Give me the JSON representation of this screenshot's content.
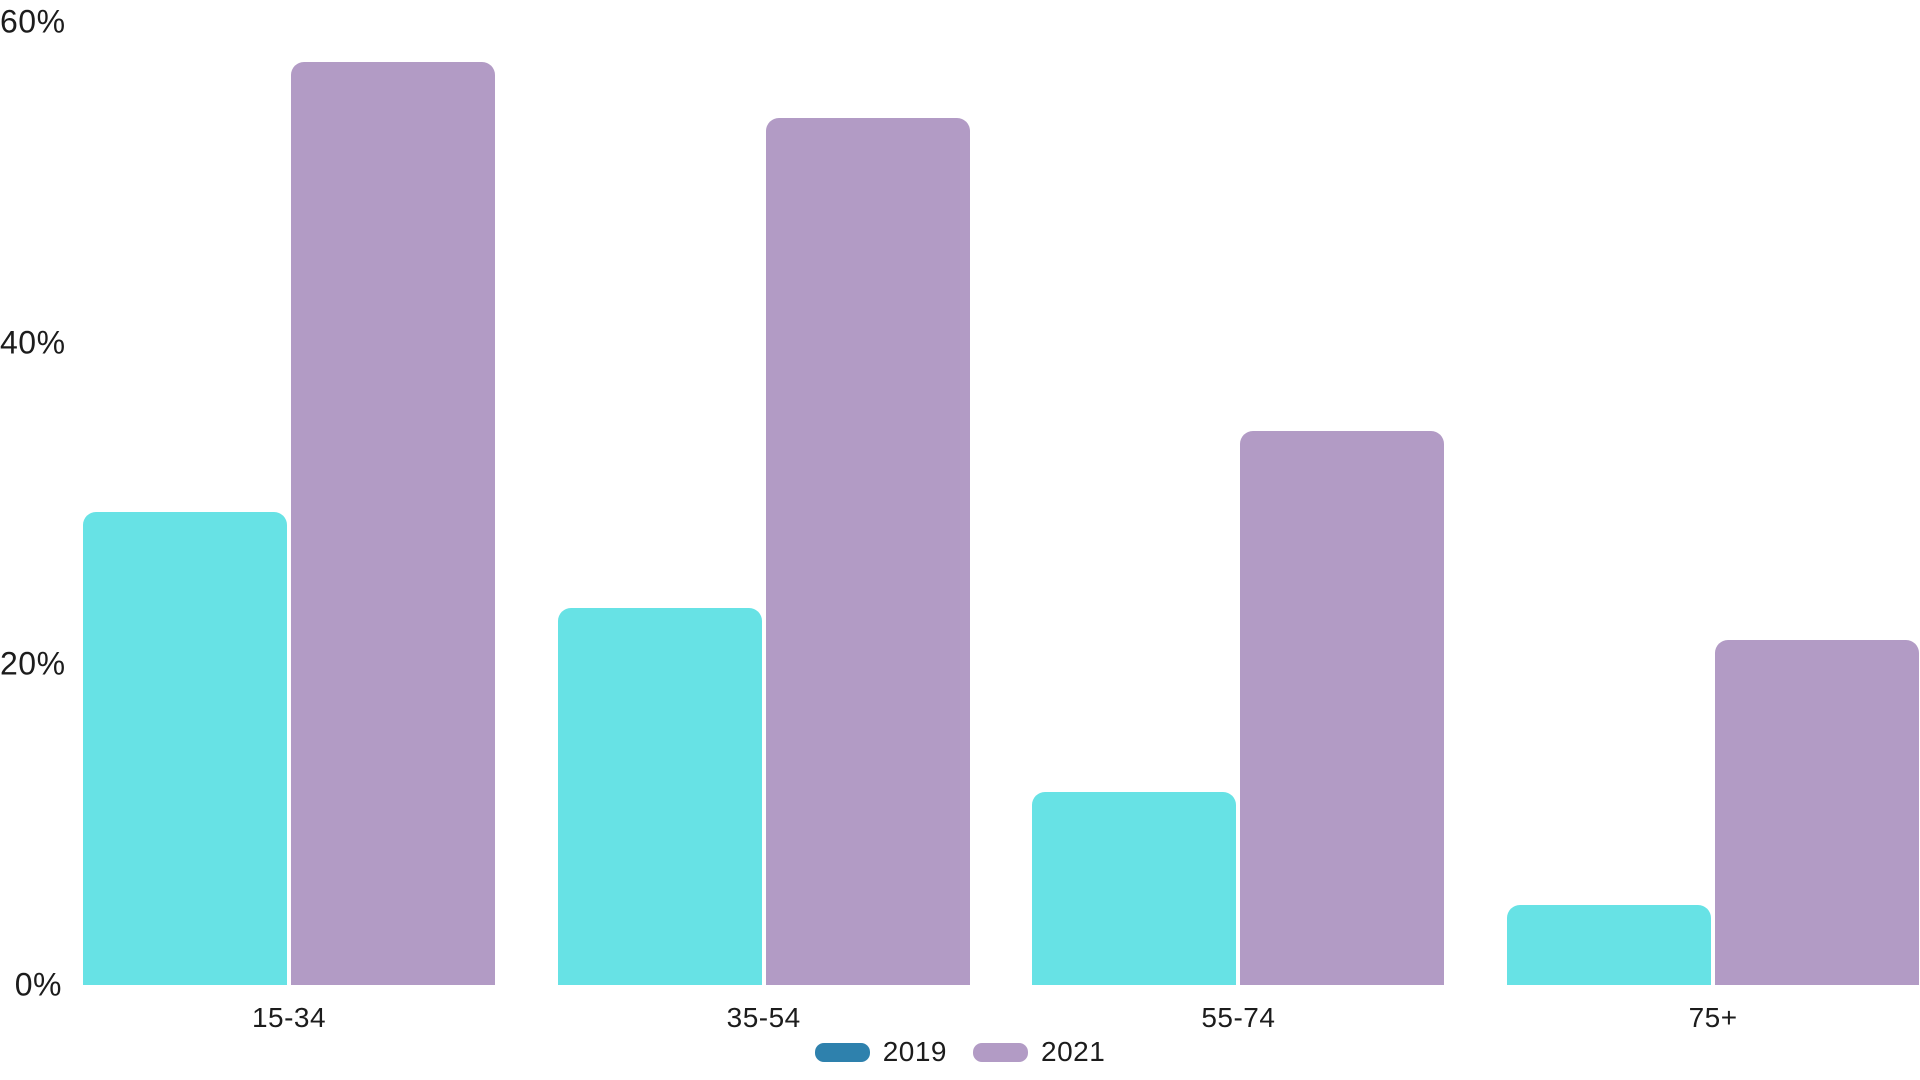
{
  "chart_data": {
    "type": "bar",
    "title": "",
    "xlabel": "",
    "ylabel": "",
    "categories": [
      "15-34",
      "35-54",
      "55-74",
      "75+"
    ],
    "series": [
      {
        "name": "2019",
        "values": [
          29.5,
          23.5,
          12,
          5
        ],
        "bar_color": "#67e2e5",
        "legend_color": "#2e81ad"
      },
      {
        "name": "2021",
        "values": [
          57.5,
          54,
          34.5,
          21.5
        ],
        "bar_color": "#b29bc5",
        "legend_color": "#b29bc5"
      }
    ],
    "ylim": [
      0,
      60
    ],
    "yticks": [
      {
        "value": 0,
        "label": "0%"
      },
      {
        "value": 20,
        "label": "20%"
      },
      {
        "value": 40,
        "label": "40%"
      },
      {
        "value": 60,
        "label": "60%"
      }
    ],
    "grid": false,
    "legend_position": "bottom-center",
    "background_color": "#ffffff",
    "text_color": "#1c1c1c"
  }
}
